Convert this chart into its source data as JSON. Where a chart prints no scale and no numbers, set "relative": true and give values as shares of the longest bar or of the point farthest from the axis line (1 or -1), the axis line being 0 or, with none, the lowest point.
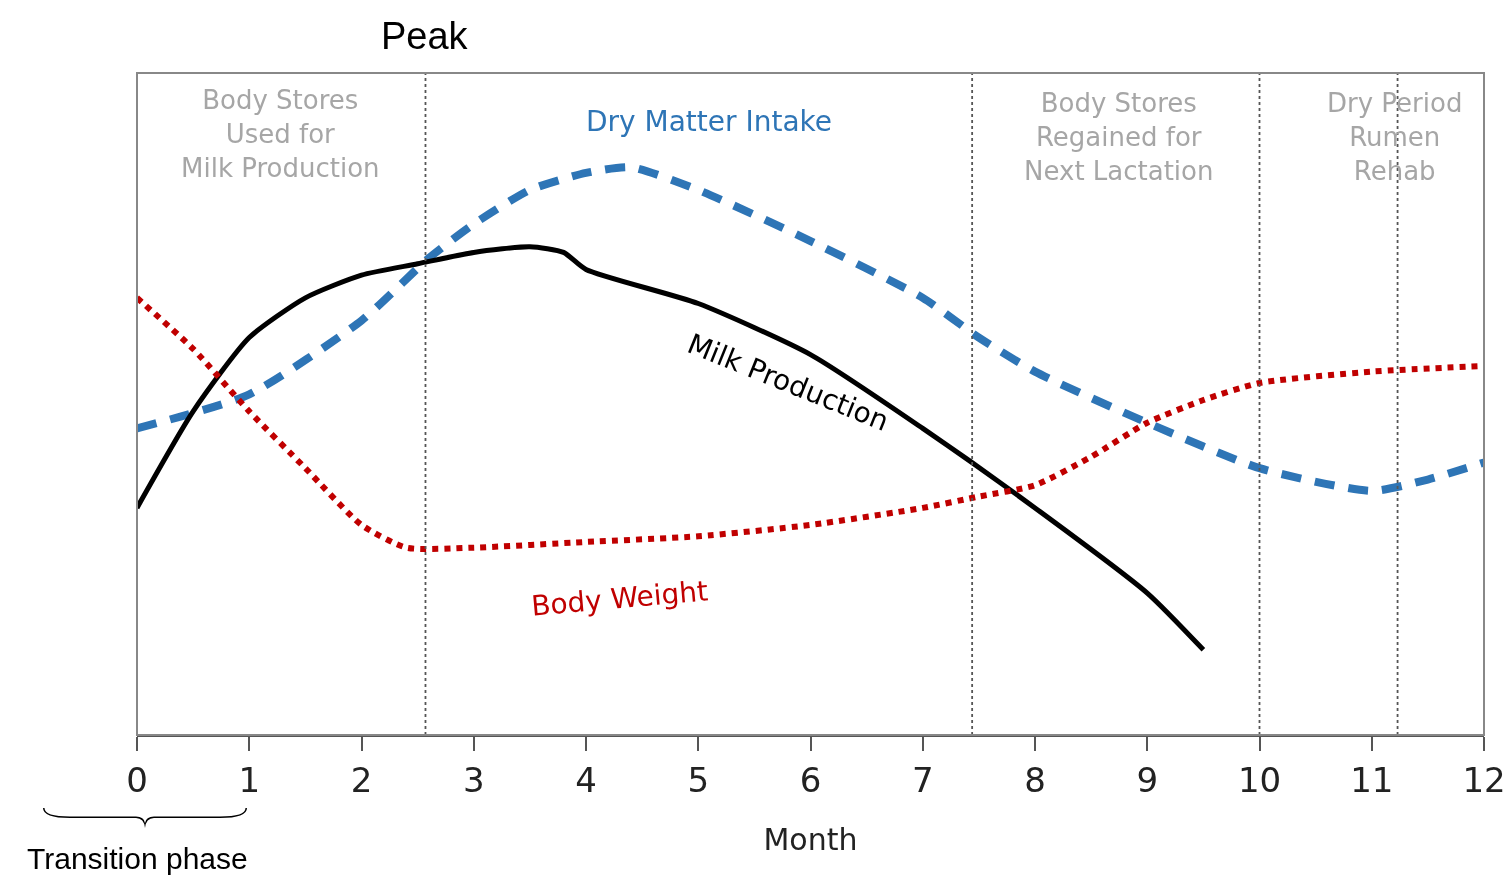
{
  "chart_data": {
    "type": "line",
    "relative": true,
    "xlabel": "Month",
    "xlim": [
      0,
      12
    ],
    "xticks": [
      0,
      1,
      2,
      3,
      4,
      5,
      6,
      7,
      8,
      9,
      10,
      11,
      12
    ],
    "tick_labels": "x",
    "grid": false,
    "legend": false,
    "marker": "none",
    "series": [
      {
        "name": "Dry Matter Intake",
        "color": "#2e75b6",
        "line_style": "dashed",
        "x": [
          0,
          1,
          2,
          2.6,
          3,
          3.5,
          4,
          4.4,
          5,
          6,
          7,
          7.5,
          8,
          9,
          10,
          11,
          11.5,
          12
        ],
        "values": [
          0.54,
          0.6,
          0.73,
          0.84,
          0.9,
          0.96,
          0.99,
          1,
          0.96,
          0.87,
          0.77,
          0.7,
          0.64,
          0.55,
          0.47,
          0.43,
          0.45,
          0.48
        ]
      },
      {
        "name": "Milk Production",
        "color": "#000000",
        "line_style": "solid",
        "x": [
          0,
          0.5,
          1,
          1.5,
          2,
          2.5,
          3,
          3.5,
          3.8,
          4,
          5,
          6,
          7,
          8,
          9,
          9.5
        ],
        "values": [
          0.4,
          0.57,
          0.7,
          0.77,
          0.81,
          0.83,
          0.85,
          0.86,
          0.85,
          0.82,
          0.76,
          0.67,
          0.54,
          0.4,
          0.25,
          0.15
        ]
      },
      {
        "name": "Body Weight",
        "color": "#c00000",
        "line_style": "dotted",
        "x": [
          0,
          0.5,
          1,
          1.5,
          2,
          2.4,
          3,
          4,
          5,
          6,
          7,
          7.5,
          8,
          8.5,
          9,
          9.5,
          10,
          11,
          12
        ],
        "values": [
          0.77,
          0.68,
          0.57,
          0.47,
          0.37,
          0.33,
          0.33,
          0.34,
          0.35,
          0.37,
          0.4,
          0.42,
          0.44,
          0.49,
          0.55,
          0.59,
          0.62,
          0.64,
          0.65
        ]
      }
    ],
    "ref_lines": [
      {
        "axis": "x",
        "value": 2.57,
        "label": "Peak",
        "line_style": "dotted"
      },
      {
        "axis": "x",
        "value": 7.44,
        "line_style": "dotted"
      },
      {
        "axis": "x",
        "value": 10,
        "line_style": "dotted"
      },
      {
        "axis": "x",
        "value": 11.23,
        "line_style": "dotted"
      }
    ],
    "annotations": [
      "Body Stores\nUsed for\nMilk Production",
      "Body Stores\nRegained for\nNext Lactation",
      "Dry Period\nRumen\nRehab",
      "Transition phase"
    ]
  }
}
